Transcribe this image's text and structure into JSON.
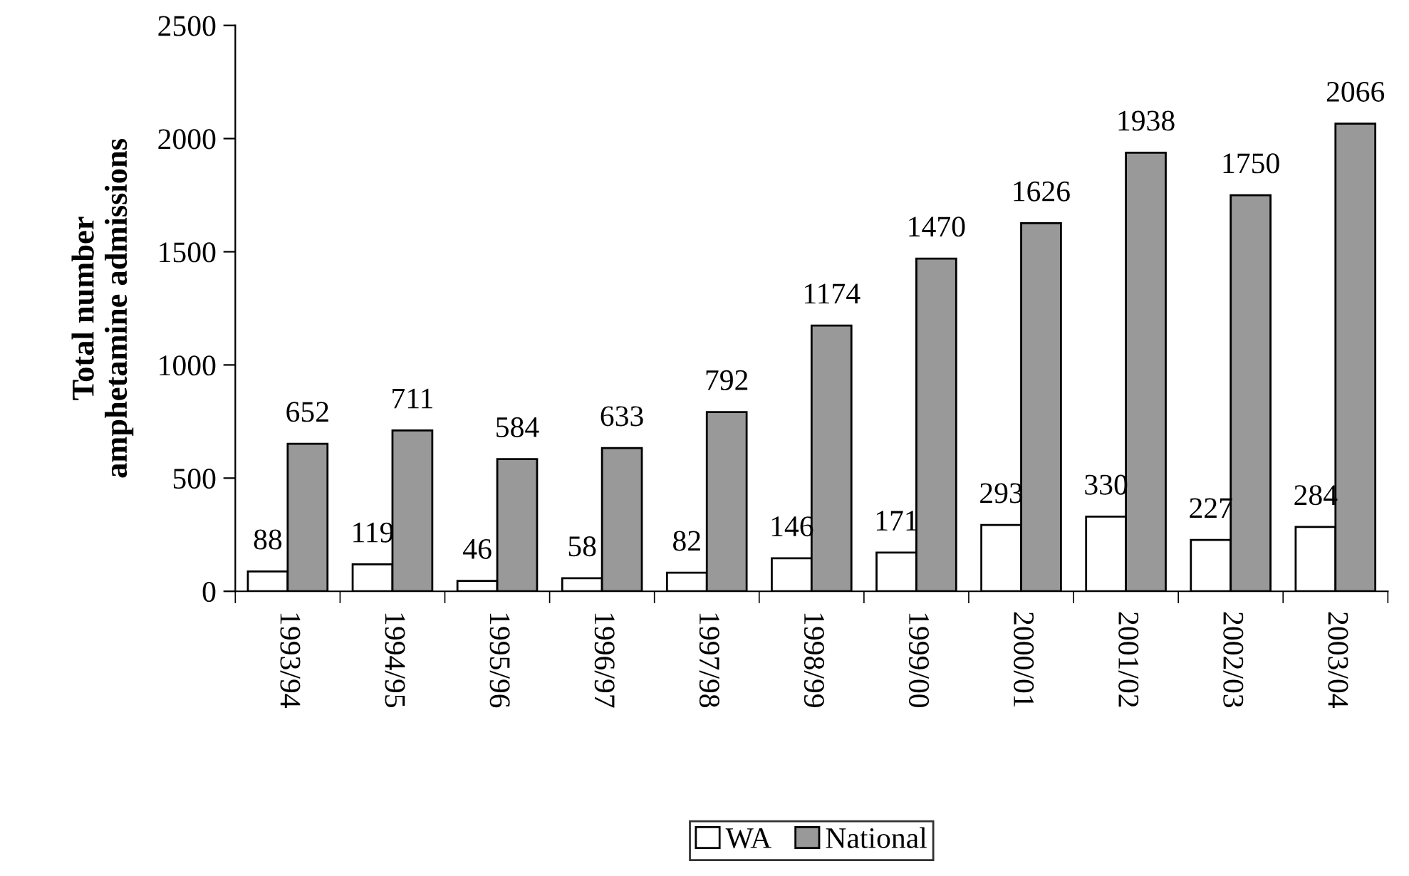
{
  "chart_data": {
    "type": "bar",
    "ylabel": "Total number\namphetamine admissions",
    "categories": [
      "1993/94",
      "1994/95",
      "1995/96",
      "1996/97",
      "1997/98",
      "1998/99",
      "1999/00",
      "2000/01",
      "2001/02",
      "2002/03",
      "2003/04"
    ],
    "series": [
      {
        "name": "WA",
        "color": "#ffffff",
        "values": [
          88,
          119,
          46,
          58,
          82,
          146,
          171,
          293,
          330,
          227,
          284
        ]
      },
      {
        "name": "National",
        "color": "#999999",
        "values": [
          652,
          711,
          584,
          633,
          792,
          1174,
          1470,
          1626,
          1938,
          1750,
          2066
        ]
      }
    ],
    "ylim": [
      0,
      2500
    ],
    "yticks": [
      0,
      500,
      1000,
      1500,
      2000,
      2500
    ],
    "grid": false,
    "legend": "bottom",
    "data_labels": true
  }
}
